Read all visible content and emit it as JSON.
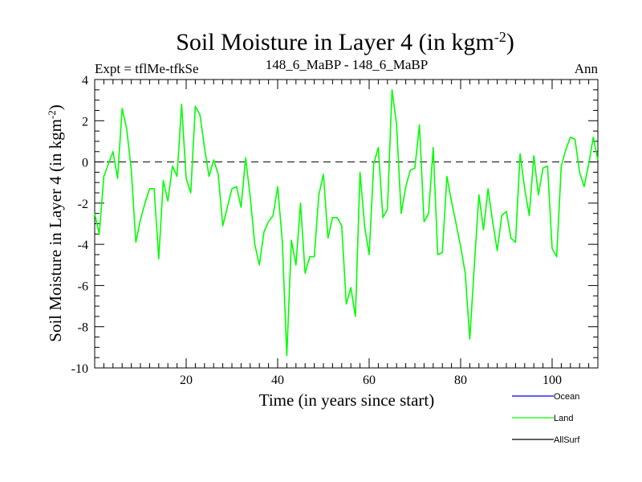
{
  "chart_data": {
    "type": "line",
    "title_main": "Soil Moisture in Layer 4 (in kgm",
    "title_exp": "-2",
    "title_close": ")",
    "expt_label": "Expt = tflMe-tfkSe",
    "center_label": "148_6_MaBP - 148_6_MaBP",
    "right_label": "Ann",
    "xlabel": "Time (in years since start)",
    "ylabel_main": "Soil Moisture in Layer 4 (in kgm",
    "ylabel_exp": "-2",
    "ylabel_close": ")",
    "xlim": [
      0,
      110
    ],
    "ylim": [
      -10,
      4
    ],
    "xticks": [
      20,
      40,
      60,
      80,
      100
    ],
    "yticks": [
      4,
      2,
      0,
      -2,
      -4,
      -6,
      -8,
      -10
    ],
    "zero_line": 0,
    "series": [
      {
        "name": "Ocean",
        "color": "#0000ff",
        "values": []
      },
      {
        "name": "Land",
        "color": "#00ff00",
        "x": [
          0,
          1,
          2,
          3,
          4,
          5,
          6,
          7,
          8,
          9,
          10,
          11,
          12,
          13,
          14,
          15,
          16,
          17,
          18,
          19,
          20,
          21,
          22,
          23,
          24,
          25,
          26,
          27,
          28,
          29,
          30,
          31,
          32,
          33,
          34,
          35,
          36,
          37,
          38,
          39,
          40,
          41,
          42,
          43,
          44,
          45,
          46,
          47,
          48,
          49,
          50,
          51,
          52,
          53,
          54,
          55,
          56,
          57,
          58,
          59,
          60,
          61,
          62,
          63,
          64,
          65,
          66,
          67,
          68,
          69,
          70,
          71,
          72,
          73,
          74,
          75,
          76,
          77,
          78,
          79,
          80,
          81,
          82,
          83,
          84,
          85,
          86,
          87,
          88,
          89,
          90,
          91,
          92,
          93,
          94,
          95,
          96,
          97,
          98,
          99,
          100,
          101,
          102,
          103,
          104,
          105,
          106,
          107,
          108,
          109,
          110
        ],
        "values": [
          -2.5,
          -3.5,
          -0.7,
          -0.1,
          0.5,
          -0.8,
          2.6,
          1.6,
          -0.4,
          -3.9,
          -2.8,
          -2.0,
          -1.3,
          -1.3,
          -4.7,
          -0.9,
          -1.9,
          -0.2,
          -0.7,
          2.8,
          -0.8,
          -1.5,
          2.7,
          2.3,
          0.7,
          -0.7,
          0.1,
          -0.6,
          -3.1,
          -2.2,
          -1.3,
          -1.2,
          -2.2,
          0.2,
          -1.7,
          -4.0,
          -5.0,
          -3.4,
          -2.9,
          -2.6,
          -1.2,
          -3.8,
          -9.4,
          -3.8,
          -5.0,
          -2.0,
          -5.4,
          -4.6,
          -4.6,
          -1.6,
          -0.6,
          -3.7,
          -2.7,
          -2.7,
          -3.1,
          -6.9,
          -6.1,
          -7.5,
          -0.5,
          -3.1,
          -4.5,
          -0.1,
          0.7,
          -2.7,
          -2.3,
          3.5,
          1.8,
          -2.5,
          -1.2,
          -0.4,
          -0.3,
          1.8,
          -2.9,
          -2.5,
          0.7,
          -4.5,
          -4.4,
          -0.7,
          -1.9,
          -3.0,
          -4.1,
          -5.4,
          -8.6,
          -5.0,
          -1.6,
          -3.3,
          -1.3,
          -2.9,
          -4.3,
          -2.6,
          -2.4,
          -3.7,
          -3.9,
          0.4,
          -1.3,
          -2.6,
          0.3,
          -1.6,
          -0.3,
          -0.2,
          -4.2,
          -4.6,
          -0.2,
          0.6,
          1.2,
          1.1,
          -0.5,
          -1.2,
          -0.1,
          1.2,
          0.1
        ]
      },
      {
        "name": "AllSurf",
        "color": "#000000",
        "values": []
      }
    ],
    "legend_position": "bottom-right"
  }
}
